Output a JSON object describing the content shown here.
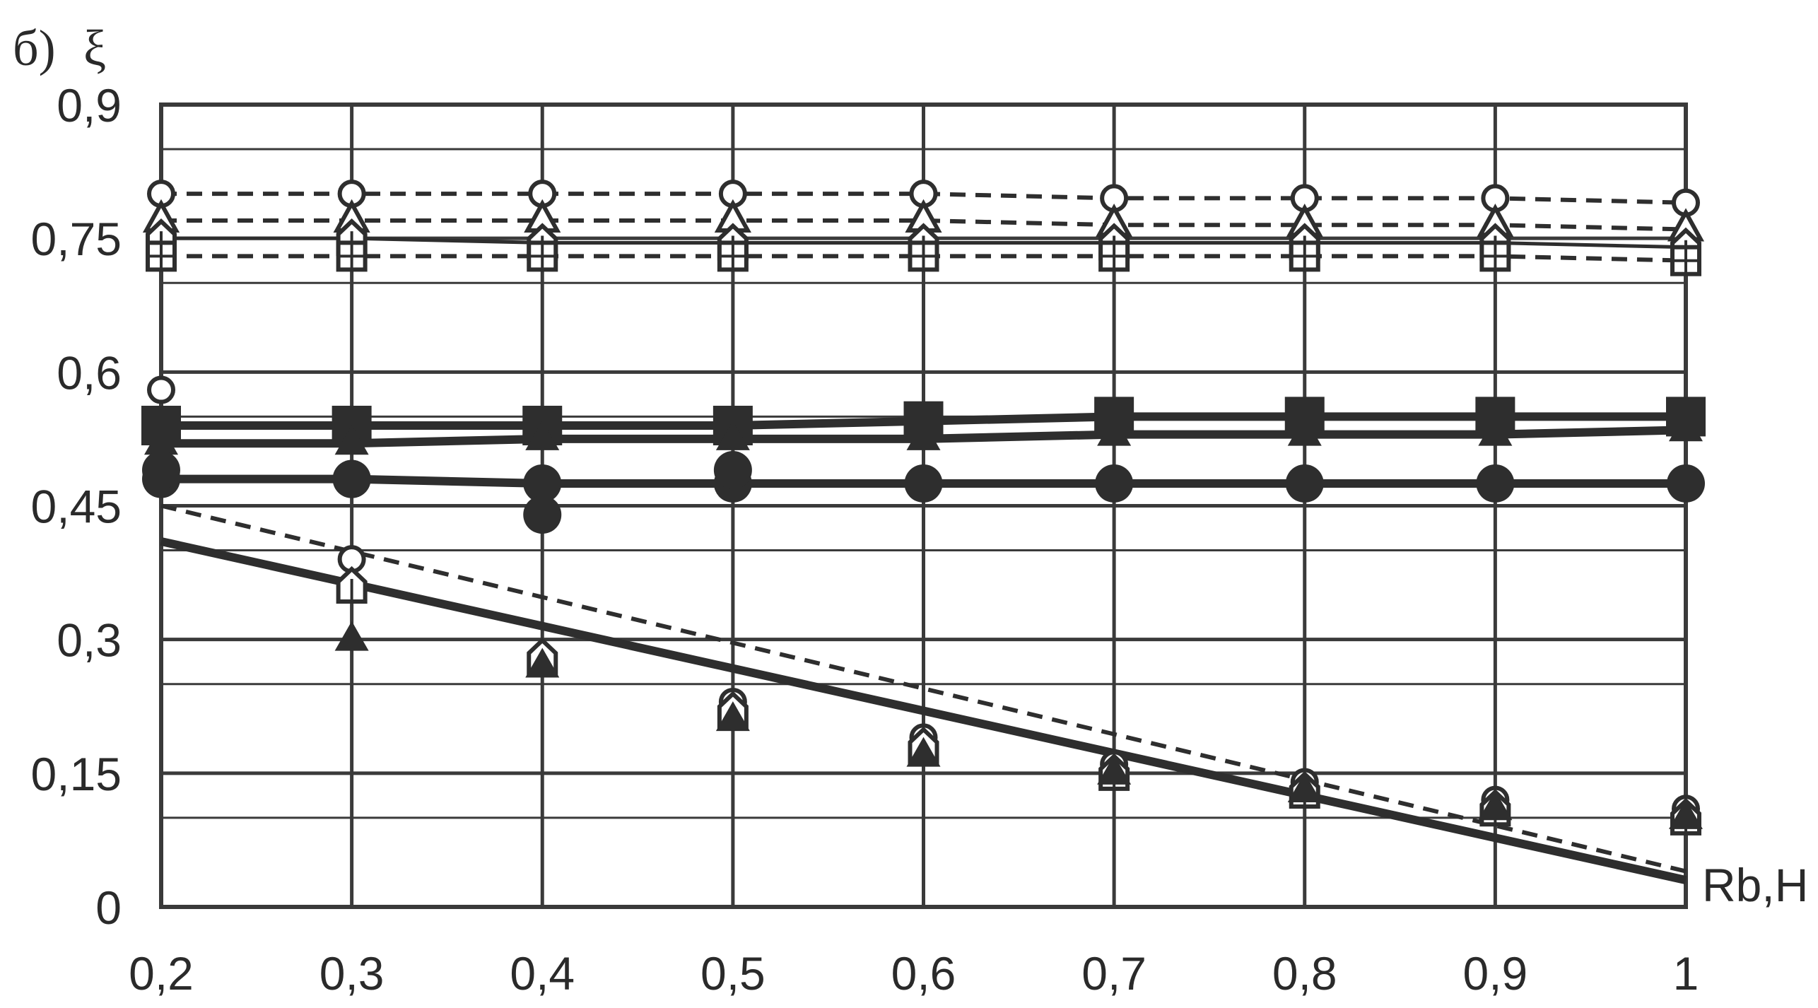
{
  "chart_data": {
    "type": "line",
    "panel_label": "б)",
    "ylabel": "ξ",
    "xlabel": "Rb,H",
    "xlim": [
      0.2,
      1.0
    ],
    "ylim": [
      0,
      0.9
    ],
    "grid": true,
    "x_ticks": [
      "0,2",
      "0,3",
      "0,4",
      "0,5",
      "0,6",
      "0,7",
      "0,8",
      "0,9",
      "1"
    ],
    "y_ticks": [
      "0",
      "0,15",
      "0,3",
      "0,45",
      "0,6",
      "0,75",
      "0,9"
    ],
    "x": [
      0.2,
      0.3,
      0.4,
      0.5,
      0.6,
      0.7,
      0.8,
      0.9,
      1.0
    ],
    "colors": {
      "ink": "#2e2e2e",
      "grid": "#3a3a3a",
      "background": "#ffffff"
    },
    "series": [
      {
        "marker": "circle-open",
        "style": "dashed",
        "values": [
          0.8,
          0.8,
          0.8,
          0.8,
          0.8,
          0.795,
          0.795,
          0.795,
          0.79
        ]
      },
      {
        "marker": "triangle-open",
        "style": "dashed",
        "values": [
          0.77,
          0.77,
          0.77,
          0.77,
          0.77,
          0.765,
          0.765,
          0.765,
          0.76
        ]
      },
      {
        "marker": "house-open",
        "style": "solid-thin",
        "values": [
          0.75,
          0.75,
          0.745,
          0.745,
          0.745,
          0.745,
          0.745,
          0.745,
          0.74
        ]
      },
      {
        "marker": "square-open",
        "style": "dashed",
        "values": [
          0.73,
          0.73,
          0.73,
          0.73,
          0.73,
          0.73,
          0.73,
          0.73,
          0.725
        ]
      },
      {
        "marker": "square-filled",
        "style": "solid-thick",
        "values": [
          0.54,
          0.54,
          0.54,
          0.54,
          0.545,
          0.55,
          0.55,
          0.55,
          0.55
        ]
      },
      {
        "marker": "triangle-filled",
        "style": "solid-thick",
        "values": [
          0.52,
          0.52,
          0.525,
          0.525,
          0.525,
          0.53,
          0.53,
          0.53,
          0.535
        ]
      },
      {
        "marker": "circle-filled",
        "style": "solid-thick",
        "values": [
          0.48,
          0.48,
          0.475,
          0.475,
          0.475,
          0.475,
          0.475,
          0.475,
          0.475
        ]
      },
      {
        "marker": "circle-filled",
        "style": "scatter",
        "values": [
          0.49,
          0.48,
          0.44,
          0.49,
          null,
          null,
          null,
          null,
          null
        ]
      },
      {
        "marker": "circle-open",
        "style": "scatter",
        "values": [
          0.58,
          0.39,
          null,
          0.23,
          0.19,
          0.16,
          0.14,
          0.12,
          0.11
        ]
      },
      {
        "marker": "house-open",
        "style": "scatter",
        "values": [
          null,
          0.36,
          0.28,
          0.22,
          0.18,
          0.15,
          0.13,
          0.11,
          0.1
        ]
      },
      {
        "marker": "triangle-filled",
        "style": "scatter",
        "values": [
          null,
          0.3,
          0.27,
          0.21,
          0.17,
          0.15,
          0.13,
          0.11,
          0.1
        ]
      },
      {
        "marker": "none",
        "style": "dashed",
        "values": [
          0.45,
          null,
          null,
          null,
          null,
          null,
          null,
          null,
          0.04
        ]
      },
      {
        "marker": "none",
        "style": "solid-thick",
        "values": [
          0.41,
          null,
          null,
          null,
          null,
          null,
          null,
          null,
          0.03
        ]
      }
    ]
  }
}
